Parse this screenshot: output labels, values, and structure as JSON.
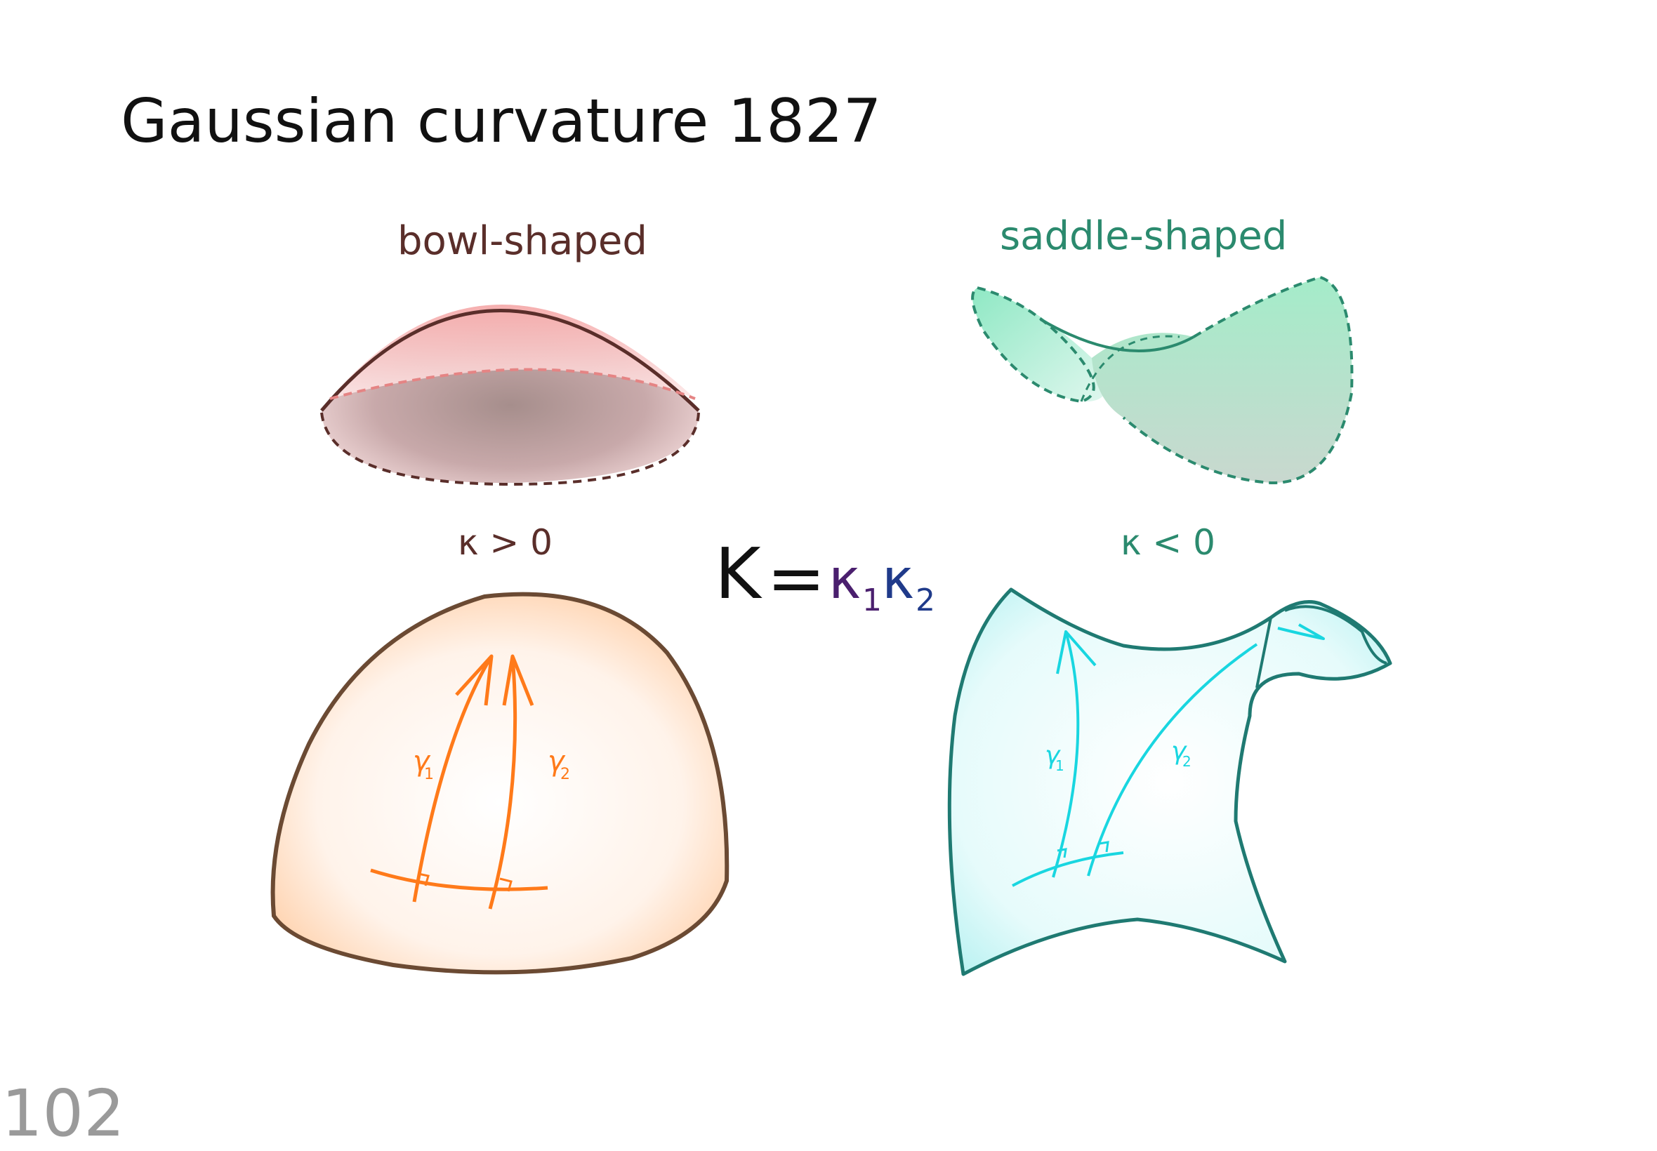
{
  "title": "Gaussian curvature 1827",
  "page_number": "102",
  "formula": {
    "K": "K",
    "eq": "=",
    "k1_base": "κ",
    "k1_sub": "1",
    "k2_base": "κ",
    "k2_sub": "2"
  },
  "bowl": {
    "label": "bowl-shaped",
    "sign": "κ > 0"
  },
  "saddle": {
    "label": "saddle-shaped",
    "sign": "κ < 0"
  },
  "dome_geodesics": {
    "g1_base": "γ",
    "g1_sub": "1",
    "g2_base": "γ",
    "g2_sub": "2"
  },
  "sheet_geodesics": {
    "g1_base": "γ",
    "g1_sub": "1",
    "g2_base": "γ",
    "g2_sub": "2"
  },
  "colors": {
    "title": "#111111",
    "bowl": "#5a2e2a",
    "saddle": "#2b8a6e",
    "formula_K": "#111111",
    "formula_k1": "#4a1f6e",
    "formula_k2": "#1f3a8a",
    "dome_outline": "#6b4a33",
    "dome_geodesic": "#ff7a1a",
    "sheet_outline": "#1f7a72",
    "sheet_geodesic": "#19d6e0",
    "page_number": "#9a9a9a"
  }
}
